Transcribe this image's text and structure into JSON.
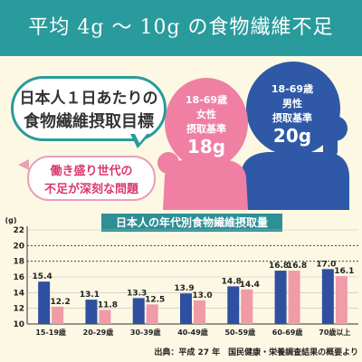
{
  "header": {
    "title": "平均 4g 〜 10g の食物繊維不足"
  },
  "bubble": {
    "line1": "日本人１日あたりの",
    "line2": "食物繊維摂取目標"
  },
  "warning": {
    "line1": "働き盛り世代の",
    "line2": "不足が深刻な問題"
  },
  "female": {
    "age": "18-69歳",
    "sex": "女性",
    "standard": "摂取基準",
    "value": "18g",
    "color": "#f07fa4"
  },
  "male": {
    "age": "18-69歳",
    "sex": "男性",
    "standard": "摂取基準",
    "value": "20g",
    "color": "#2f59a6"
  },
  "source": "出典：平成 27 年　国民健康・栄養調査結果の概要より",
  "chart_data": {
    "type": "bar",
    "title": "日本人の年代別食物繊維摂取量",
    "ylabel": "(g)",
    "ylim": [
      10,
      22
    ],
    "yticks": [
      "10",
      "12",
      "14",
      "16",
      "18",
      "20",
      "22"
    ],
    "reference_lines": [
      18,
      20
    ],
    "categories": [
      "15-19歳",
      "20-29歳",
      "30-39歳",
      "40-49歳",
      "50-59歳",
      "60-69歳",
      "70歳以上"
    ],
    "series": [
      {
        "color": "#2f4fa0",
        "values": [
          15.4,
          13.1,
          13.3,
          13.9,
          14.8,
          16.8,
          17.0
        ],
        "labels": [
          "15.4",
          "13.1",
          "13.3",
          "13.9",
          "14.8",
          "16.8",
          "17.0"
        ]
      },
      {
        "color": "#f19aa8",
        "values": [
          12.2,
          11.8,
          12.5,
          13.0,
          14.4,
          16.8,
          16.1
        ],
        "labels": [
          "12.2",
          "11.8",
          "12.5",
          "13.0",
          "14.4",
          "16.8",
          "16.1"
        ]
      }
    ]
  }
}
